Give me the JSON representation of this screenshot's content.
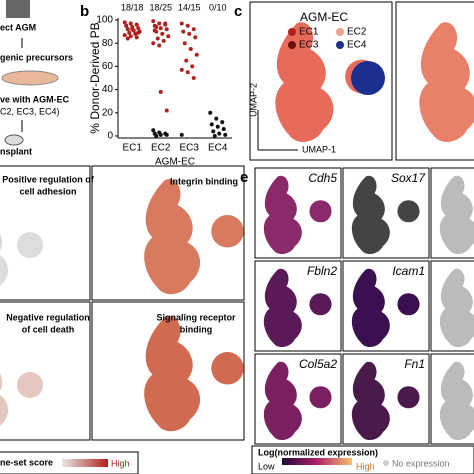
{
  "panel_a": {
    "lines": [
      "ect AGM",
      "genic precursors",
      "ve with AGM-EC",
      "C2, EC3, EC4)",
      "nsplant"
    ]
  },
  "panel_b": {
    "label": "b",
    "type": "strip",
    "y_label": "% Donor-Derived PB",
    "ylim": [
      0,
      100
    ],
    "yticks": [
      0,
      20,
      40,
      60,
      80,
      100
    ],
    "categories": [
      "EC1",
      "EC2",
      "EC3",
      "EC4"
    ],
    "x_label": "AGM-EC",
    "counts": [
      "18/18",
      "18/25",
      "14/15",
      "0/10"
    ],
    "engrafted_color": "#b0201c",
    "not_engrafted_color": "#111111",
    "groups": [
      {
        "engrafted": [
          98,
          97,
          96,
          95,
          94,
          93,
          92,
          91,
          90,
          89,
          88,
          87,
          86,
          85,
          95,
          92,
          89,
          84
        ],
        "not_engrafted": []
      },
      {
        "engrafted": [
          99,
          97,
          96,
          95,
          93,
          92,
          90,
          88,
          86,
          84,
          82,
          80,
          78,
          97,
          91,
          38,
          22,
          94
        ],
        "not_engrafted": [
          5,
          3,
          2,
          2,
          1,
          1,
          0
        ]
      },
      {
        "engrafted": [
          97,
          95,
          92,
          90,
          88,
          85,
          80,
          75,
          70,
          65,
          60,
          57,
          55,
          50
        ],
        "not_engrafted": [
          1
        ]
      },
      {
        "engrafted": [],
        "not_engrafted": [
          20,
          15,
          12,
          10,
          8,
          6,
          4,
          2,
          1,
          0
        ]
      }
    ]
  },
  "panel_c": {
    "label": "c",
    "legend_title": "AGM-EC",
    "legend": [
      {
        "name": "EC1",
        "color": "#b0201c"
      },
      {
        "name": "EC2",
        "color": "#f0a090"
      },
      {
        "name": "EC3",
        "color": "#6a1010"
      },
      {
        "name": "EC4",
        "color": "#1a2f8f"
      }
    ],
    "x_axis": "UMAP-1",
    "y_axis": "UMAP-2"
  },
  "panel_d": {
    "titles": [
      [
        "Positive regulation of",
        "cell adhesion"
      ],
      [
        "Integrin binding"
      ],
      [
        "Negative regulation",
        "of cell death"
      ],
      [
        "Signaling receptor",
        "binding"
      ]
    ],
    "colorbar": "ne-set score",
    "high": "High"
  },
  "panel_e": {
    "label": "e",
    "genes": [
      "Cdh5",
      "Sox17",
      "Fbln2",
      "Icam1",
      "Col5a2",
      "Fn1"
    ],
    "colorbar": "Log(normalized expression)",
    "low": "Low",
    "high": "High",
    "no_expression": "No expression"
  }
}
